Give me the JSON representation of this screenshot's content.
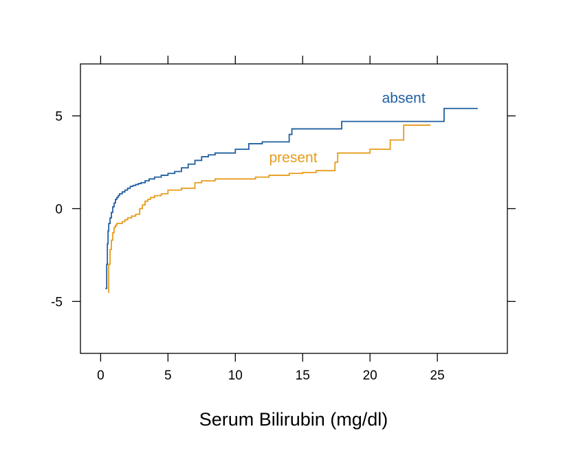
{
  "chart_data": {
    "type": "line",
    "title": "",
    "xlabel": "Serum Bilirubin (mg/dl)",
    "ylabel": "",
    "xlim": [
      -1.5,
      30.2
    ],
    "ylim": [
      -7.8,
      7.8
    ],
    "x_ticks": [
      0,
      5,
      10,
      15,
      20,
      25
    ],
    "x_tick_labels": [
      "0",
      "5",
      "10",
      "15",
      "20",
      "25"
    ],
    "y_ticks": [
      -5,
      0,
      5
    ],
    "y_tick_labels": [
      "-5",
      "0",
      "5"
    ],
    "grid": false,
    "step": true,
    "series": [
      {
        "name": "absent",
        "color": "#1f5fa0",
        "x": [
          0.35,
          0.45,
          0.5,
          0.55,
          0.6,
          0.7,
          0.8,
          0.9,
          1.0,
          1.1,
          1.2,
          1.3,
          1.4,
          1.6,
          1.8,
          2.0,
          2.2,
          2.4,
          2.6,
          2.8,
          3.0,
          3.3,
          3.6,
          4.0,
          4.5,
          5.0,
          5.5,
          6.0,
          6.5,
          7.0,
          7.5,
          8.0,
          8.5,
          9.0,
          10.0,
          11.0,
          12.0,
          13.0,
          14.0,
          14.2,
          16.0,
          17.5,
          17.9,
          20.0,
          22.0,
          25.5,
          28.0
        ],
        "y": [
          -4.3,
          -3.0,
          -1.9,
          -1.2,
          -0.8,
          -0.5,
          -0.2,
          0.1,
          0.3,
          0.5,
          0.6,
          0.7,
          0.8,
          0.9,
          1.0,
          1.1,
          1.2,
          1.25,
          1.3,
          1.35,
          1.4,
          1.5,
          1.6,
          1.7,
          1.8,
          1.9,
          2.0,
          2.2,
          2.4,
          2.6,
          2.8,
          2.9,
          3.0,
          3.0,
          3.2,
          3.5,
          3.6,
          3.6,
          4.0,
          4.3,
          4.3,
          4.3,
          4.7,
          4.7,
          4.7,
          5.4,
          5.4
        ]
      },
      {
        "name": "present",
        "color": "#e69c1a",
        "x": [
          0.55,
          0.6,
          0.7,
          0.8,
          0.9,
          1.0,
          1.1,
          1.2,
          1.4,
          1.6,
          1.8,
          2.0,
          2.3,
          2.6,
          2.9,
          3.1,
          3.3,
          3.5,
          3.7,
          4.0,
          4.5,
          5.0,
          6.0,
          7.0,
          7.5,
          8.5,
          10.0,
          11.5,
          12.5,
          14.0,
          15.0,
          16.0,
          17.4,
          17.6,
          20.0,
          21.5,
          22.5,
          24.5
        ],
        "y": [
          -4.5,
          -3.0,
          -2.2,
          -1.7,
          -1.3,
          -1.0,
          -0.9,
          -0.8,
          -0.8,
          -0.7,
          -0.6,
          -0.5,
          -0.4,
          -0.3,
          0.0,
          0.2,
          0.4,
          0.5,
          0.6,
          0.7,
          0.8,
          1.0,
          1.1,
          1.4,
          1.5,
          1.6,
          1.6,
          1.7,
          1.8,
          1.9,
          1.95,
          2.05,
          2.5,
          3.0,
          3.2,
          3.7,
          4.5,
          4.5
        ]
      }
    ]
  },
  "labels": {
    "absent": {
      "text": "absent",
      "x": 22.5,
      "y": 5.7
    },
    "present": {
      "text": "present",
      "x": 14.3,
      "y": 2.5
    }
  }
}
